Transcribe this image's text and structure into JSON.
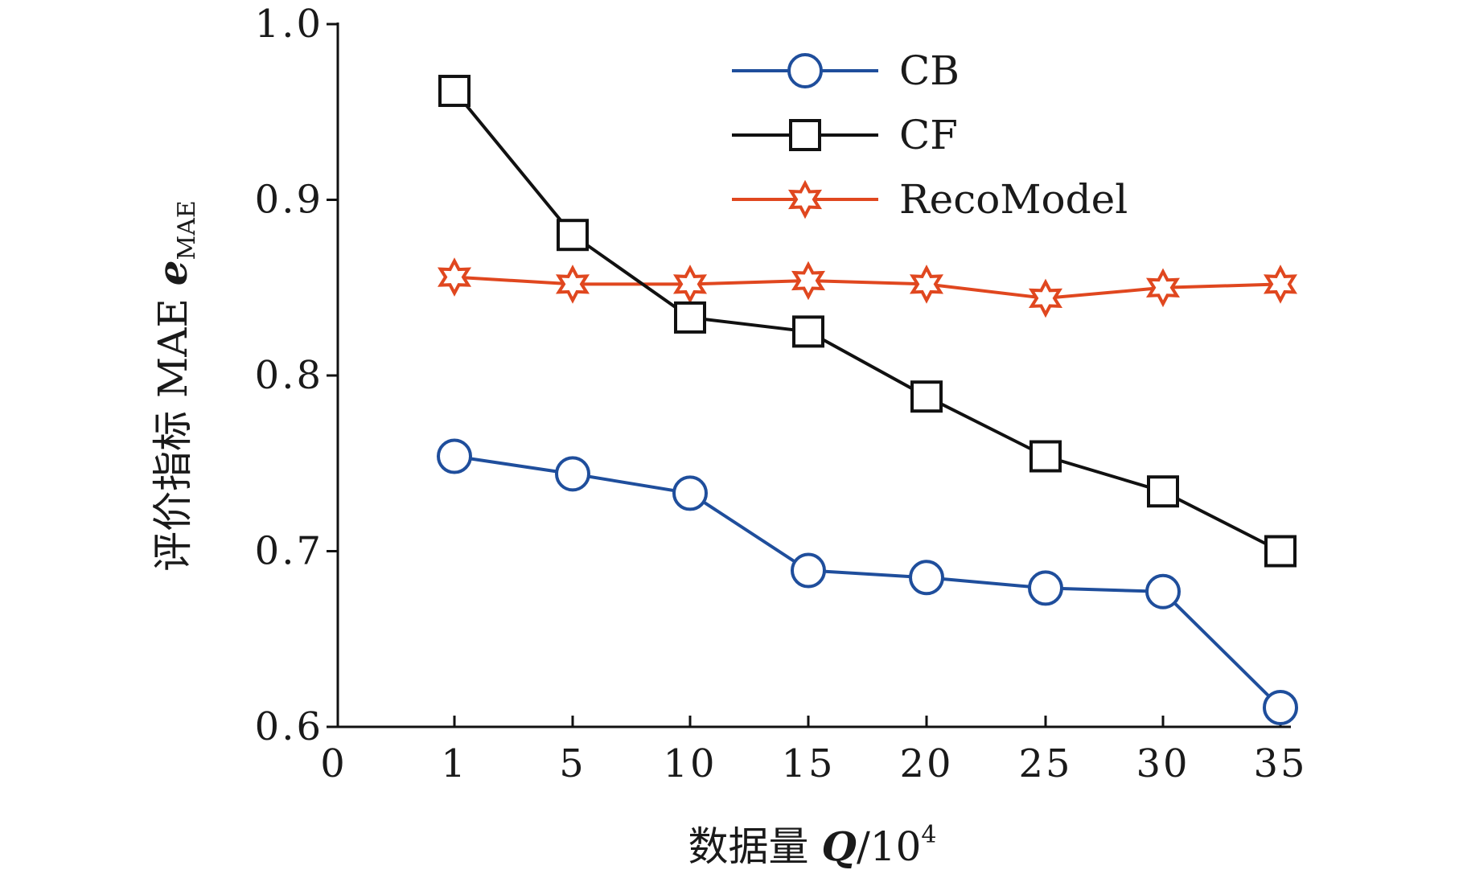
{
  "chart_data": {
    "type": "line",
    "title": "",
    "xlabel": "数据量 Q/10⁴",
    "xlabel_parts": {
      "main": "数据量 ",
      "var": "Q",
      "rest": "/10",
      "sup": "4"
    },
    "ylabel": "评价指标 MAE e MAE",
    "ylabel_parts": {
      "main": "评价指标 MAE ",
      "var": "e",
      "sub": "MAE"
    },
    "x_origin_label": "0",
    "categories": [
      "1",
      "5",
      "10",
      "15",
      "20",
      "25",
      "30",
      "35"
    ],
    "ylim": [
      0.6,
      1.0
    ],
    "yticks": [
      0.6,
      0.7,
      0.8,
      0.9,
      1.0
    ],
    "ytick_labels": [
      "0.6",
      "0.7",
      "0.8",
      "0.9",
      "1.0"
    ],
    "grid": false,
    "legend_position": "top-right",
    "series": [
      {
        "name": "CB",
        "marker": "circle",
        "color": "#1f4e9c",
        "values": [
          0.754,
          0.744,
          0.733,
          0.689,
          0.685,
          0.679,
          0.677,
          0.611
        ]
      },
      {
        "name": "CF",
        "marker": "square",
        "color": "#111111",
        "values": [
          0.962,
          0.88,
          0.833,
          0.825,
          0.788,
          0.754,
          0.734,
          0.7
        ]
      },
      {
        "name": "RecoModel",
        "marker": "star",
        "color": "#e0471f",
        "values": [
          0.856,
          0.852,
          0.852,
          0.854,
          0.852,
          0.844,
          0.85,
          0.852
        ]
      }
    ]
  }
}
